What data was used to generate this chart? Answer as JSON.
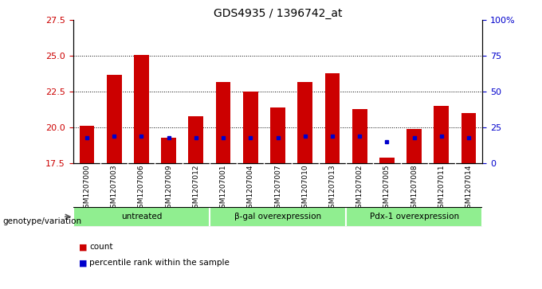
{
  "title": "GDS4935 / 1396742_at",
  "samples": [
    "GSM1207000",
    "GSM1207003",
    "GSM1207006",
    "GSM1207009",
    "GSM1207012",
    "GSM1207001",
    "GSM1207004",
    "GSM1207007",
    "GSM1207010",
    "GSM1207013",
    "GSM1207002",
    "GSM1207005",
    "GSM1207008",
    "GSM1207011",
    "GSM1207014"
  ],
  "counts": [
    20.1,
    23.7,
    25.1,
    19.3,
    20.8,
    23.2,
    22.5,
    21.4,
    23.2,
    23.8,
    21.3,
    17.9,
    19.9,
    21.5,
    21.0
  ],
  "percentile_vals": [
    18,
    19,
    19,
    18,
    18,
    18,
    18,
    18,
    19,
    19,
    19,
    15,
    18,
    19,
    18
  ],
  "groups": [
    {
      "label": "untreated",
      "start": 0,
      "end": 5
    },
    {
      "label": "β-gal overexpression",
      "start": 5,
      "end": 10
    },
    {
      "label": "Pdx-1 overexpression",
      "start": 10,
      "end": 15
    }
  ],
  "ylim_left": [
    17.5,
    27.5
  ],
  "ylim_right": [
    0,
    100
  ],
  "yticks_left": [
    17.5,
    20.0,
    22.5,
    25.0,
    27.5
  ],
  "yticks_right": [
    0,
    25,
    50,
    75,
    100
  ],
  "bar_color": "#cc0000",
  "dot_color": "#0000cc",
  "tick_bg_color": "#c8c8c8",
  "group_bg": "#90ee90",
  "bar_width": 0.55,
  "genotype_label": "genotype/variation",
  "legend_count": "count",
  "legend_pct": "percentile rank within the sample"
}
